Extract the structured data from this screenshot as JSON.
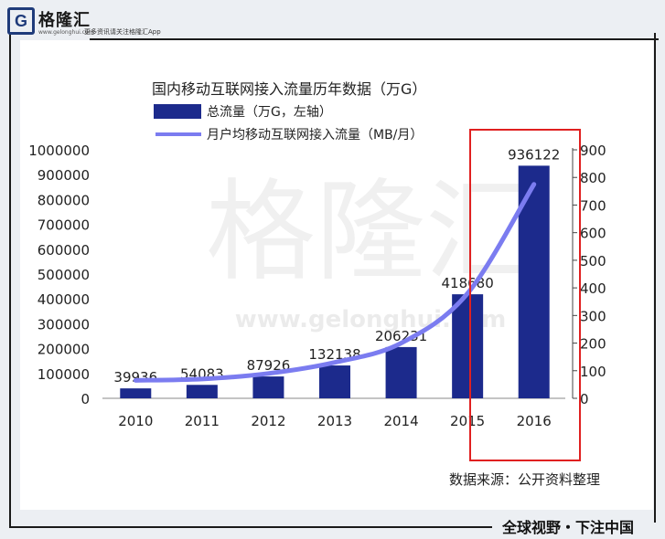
{
  "header": {
    "logo_letter": "G",
    "brand_name": "格隆汇",
    "brand_url": "www.gelonghui.com",
    "brand_tagline": "更多资讯请关注格隆汇App"
  },
  "watermark": {
    "main": "格隆汇",
    "url": "www.gelonghui.com"
  },
  "footer": {
    "slogan": "全球视野・下注中国",
    "source": "数据来源：公开资料整理"
  },
  "colors": {
    "bar": "#1c2a8c",
    "line": "#7b7cf0",
    "highlight_box": "#e02020",
    "frame": "#1a1a1a"
  },
  "chart_data": {
    "type": "bar",
    "title": "国内移动互联网接入流量历年数据（万G）",
    "categories": [
      "2010",
      "2011",
      "2012",
      "2013",
      "2014",
      "2015",
      "2016"
    ],
    "series": [
      {
        "name": "总流量（万G，左轴）",
        "type": "bar",
        "axis": "left",
        "values": [
          39936,
          54083,
          87926,
          132138,
          206231,
          418680,
          936122
        ],
        "labels": [
          "39936",
          "54083",
          "87926",
          "132138",
          "206231",
          "418680",
          "936122"
        ]
      },
      {
        "name": "月户均移动互联网接入流量（MB/月）",
        "type": "line",
        "axis": "right",
        "values": [
          65,
          70,
          90,
          130,
          200,
          380,
          775
        ]
      }
    ],
    "y_left": {
      "ylim": [
        0,
        1000000
      ],
      "ticks": [
        "0",
        "100000",
        "200000",
        "300000",
        "400000",
        "500000",
        "600000",
        "700000",
        "800000",
        "900000",
        "1000000"
      ]
    },
    "y_right": {
      "ylim": [
        0,
        900
      ],
      "ticks": [
        "0",
        "100",
        "200",
        "300",
        "400",
        "500",
        "600",
        "700",
        "800",
        "900"
      ]
    },
    "grid": false,
    "legend": "top-left",
    "highlight": "2016"
  }
}
